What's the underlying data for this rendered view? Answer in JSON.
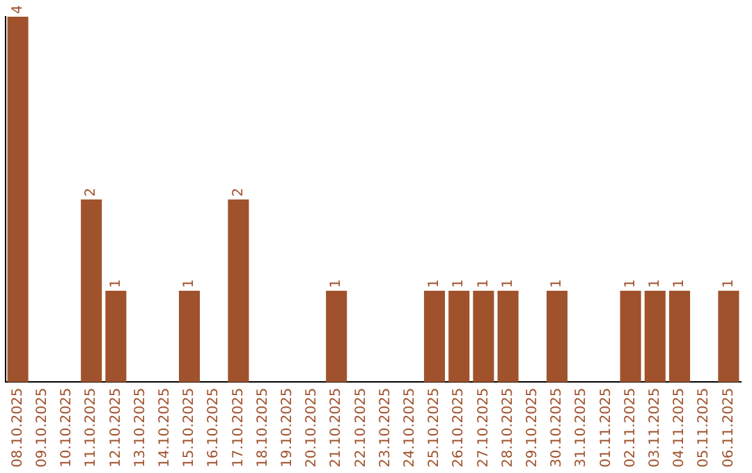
{
  "chart_data": {
    "type": "bar",
    "categories": [
      "08.10.2025",
      "09.10.2025",
      "10.10.2025",
      "11.10.2025",
      "12.10.2025",
      "13.10.2025",
      "14.10.2025",
      "15.10.2025",
      "16.10.2025",
      "17.10.2025",
      "18.10.2025",
      "19.10.2025",
      "20.10.2025",
      "21.10.2025",
      "22.10.2025",
      "23.10.2025",
      "24.10.2025",
      "25.10.2025",
      "26.10.2025",
      "27.10.2025",
      "28.10.2025",
      "29.10.2025",
      "30.10.2025",
      "31.10.2025",
      "01.11.2025",
      "02.11.2025",
      "03.11.2025",
      "04.11.2025",
      "05.11.2025",
      "06.11.2025"
    ],
    "values": [
      4,
      0,
      0,
      2,
      1,
      0,
      0,
      1,
      0,
      2,
      0,
      0,
      0,
      1,
      0,
      0,
      0,
      1,
      1,
      1,
      1,
      0,
      1,
      0,
      0,
      1,
      1,
      1,
      0,
      1
    ],
    "value_labels": [
      "4",
      null,
      null,
      "2",
      "1",
      null,
      null,
      "1",
      null,
      "2",
      null,
      null,
      null,
      "1",
      null,
      null,
      null,
      "1",
      "1",
      "1",
      "1",
      null,
      "1",
      null,
      null,
      "1",
      "1",
      "1",
      null,
      "1"
    ],
    "color": "#a0522d",
    "grid": false,
    "legend": false
  }
}
